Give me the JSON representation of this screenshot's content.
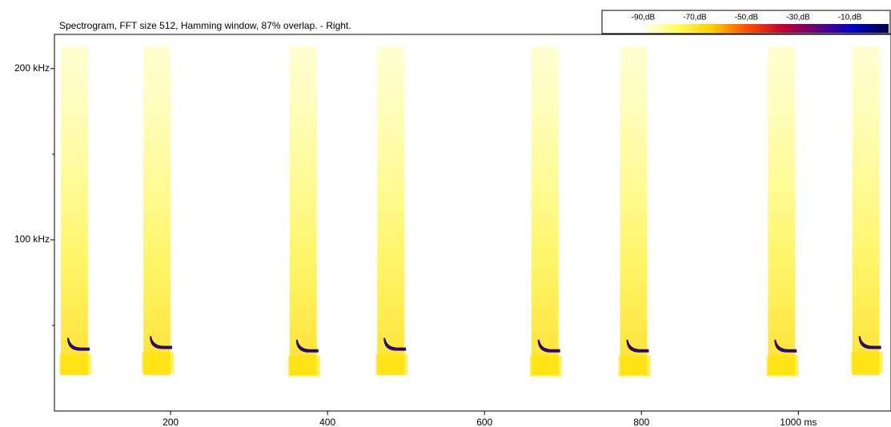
{
  "chart_data": {
    "type": "spectrogram",
    "title": "Spectrogram, FFT size 512, Hamming window, 87% overlap. - Right.",
    "x": [
      76.5,
      181.6,
      368,
      479.6,
      676,
      789,
      977.5,
      1085
    ],
    "values": [
      38,
      39,
      37,
      38,
      37,
      37,
      37,
      39
    ],
    "color": "#2a0a6e",
    "xlim": [
      52,
      1118
    ],
    "xticks": [
      200,
      400,
      600,
      800,
      {
        "value": 1000,
        "label": "1000 ms"
      }
    ],
    "ylim": [
      0,
      220
    ],
    "yticks": [
      {
        "value": 100,
        "label": "100 kHz"
      },
      {
        "value": 200,
        "label": "200 kHz"
      }
    ],
    "yminorticks": [
      50,
      150
    ],
    "colorbar": {
      "lim": [
        -105,
        5
      ],
      "ticks": [
        {
          "value": -90,
          "label": "-90,dB"
        },
        {
          "value": -70,
          "label": "-70,dB"
        },
        {
          "value": -50,
          "label": "-50,dB"
        },
        {
          "value": -30,
          "label": "-30,dB"
        },
        {
          "value": -10,
          "label": "-10,dB"
        }
      ],
      "colors": [
        "#ffffff",
        "#ffffff",
        "#ffff60",
        "#ffd000",
        "#ff5000",
        "#c00030",
        "#600080",
        "#0000c0",
        "#000040"
      ]
    }
  }
}
